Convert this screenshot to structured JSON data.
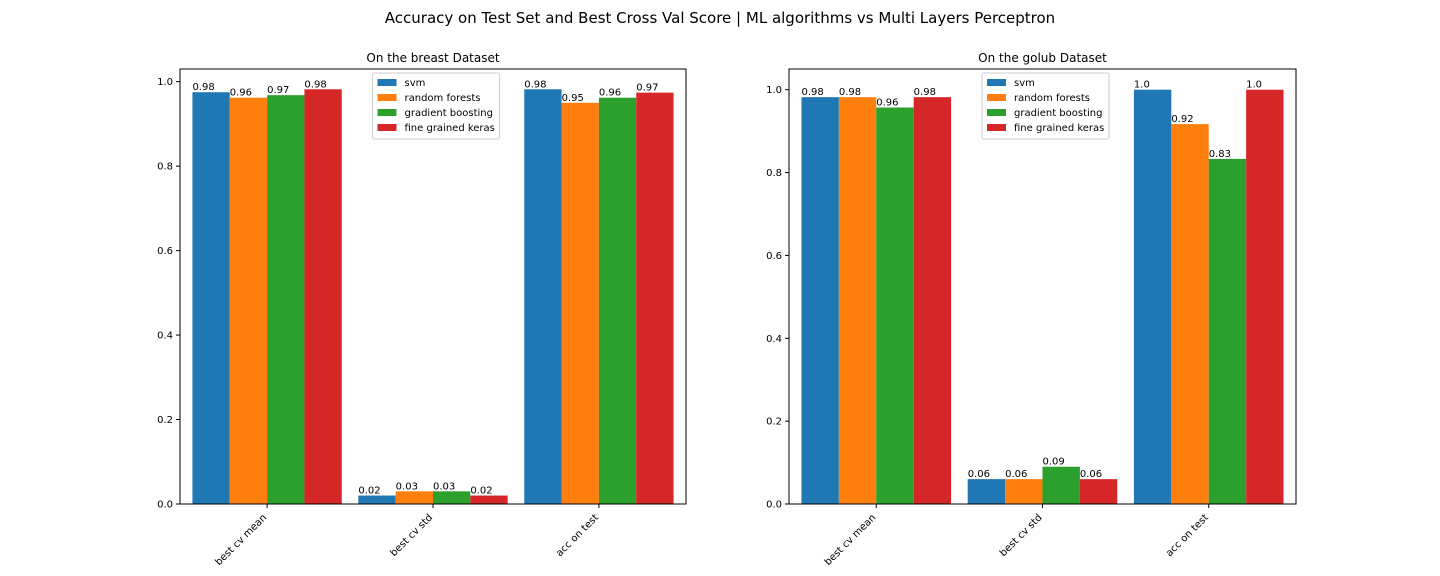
{
  "figure": {
    "title": "Accuracy on Test Set and Best Cross Val Score | ML algorithms vs Multi Layers Perceptron"
  },
  "colors": {
    "svm": "#1f77b4",
    "random forests": "#ff7f0e",
    "gradient boosting": "#2ca02c",
    "fine grained keras": "#d62728"
  },
  "chart_data": [
    {
      "type": "bar",
      "title": "On the breast Dataset",
      "xlabel": "",
      "ylabel": "",
      "categories": [
        "best cv mean",
        "best cv std",
        "acc on test"
      ],
      "series": [
        {
          "name": "svm",
          "values": [
            0.975,
            0.02,
            0.982
          ],
          "labels": [
            "0.98",
            "0.02",
            "0.98"
          ]
        },
        {
          "name": "random forests",
          "values": [
            0.962,
            0.03,
            0.95
          ],
          "labels": [
            "0.96",
            "0.03",
            "0.95"
          ]
        },
        {
          "name": "gradient boosting",
          "values": [
            0.968,
            0.03,
            0.962
          ],
          "labels": [
            "0.97",
            "0.03",
            "0.96"
          ]
        },
        {
          "name": "fine grained keras",
          "values": [
            0.982,
            0.02,
            0.974
          ],
          "labels": [
            "0.98",
            "0.02",
            "0.97"
          ]
        }
      ],
      "ylim": [
        0,
        1.03
      ],
      "yticks": [
        "0.0",
        "0.2",
        "0.4",
        "0.6",
        "0.8",
        "1.0"
      ],
      "legend": "top-center",
      "grid": false
    },
    {
      "type": "bar",
      "title": "On the golub Dataset",
      "xlabel": "",
      "ylabel": "",
      "categories": [
        "best cv mean",
        "best cv std",
        "acc on test"
      ],
      "series": [
        {
          "name": "svm",
          "values": [
            0.982,
            0.06,
            1.0
          ],
          "labels": [
            "0.98",
            "0.06",
            "1.0"
          ]
        },
        {
          "name": "random forests",
          "values": [
            0.982,
            0.06,
            0.917
          ],
          "labels": [
            "0.98",
            "0.06",
            "0.92"
          ]
        },
        {
          "name": "gradient boosting",
          "values": [
            0.957,
            0.09,
            0.833
          ],
          "labels": [
            "0.96",
            "0.09",
            "0.83"
          ]
        },
        {
          "name": "fine grained keras",
          "values": [
            0.982,
            0.06,
            1.0
          ],
          "labels": [
            "0.98",
            "0.06",
            "1.0"
          ]
        }
      ],
      "ylim": [
        0,
        1.05
      ],
      "yticks": [
        "0.0",
        "0.2",
        "0.4",
        "0.6",
        "0.8",
        "1.0"
      ],
      "legend": "top-center",
      "grid": false
    }
  ]
}
